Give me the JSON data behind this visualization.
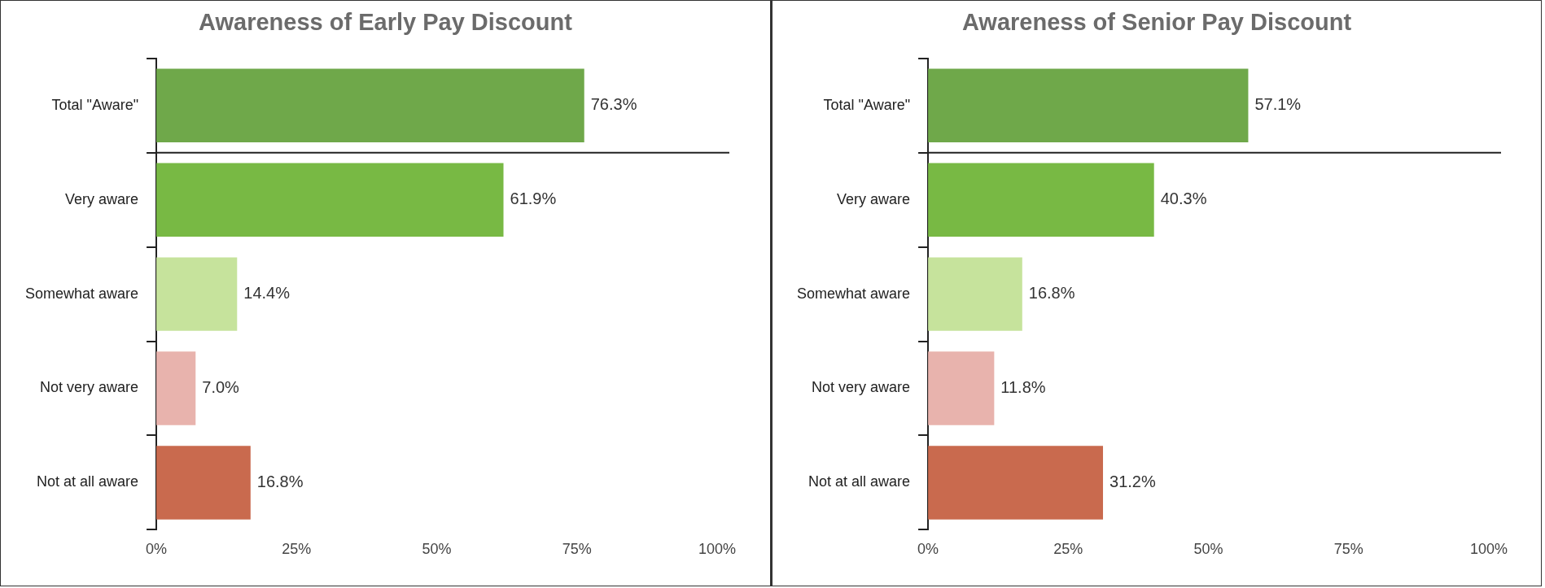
{
  "chart_data": [
    {
      "type": "bar",
      "orientation": "horizontal",
      "title": "Awareness of Early Pay Discount",
      "categories": [
        "Total \"Aware\"",
        "Very aware",
        "Somewhat aware",
        "Not very aware",
        "Not at all aware"
      ],
      "values": [
        76.3,
        61.9,
        14.4,
        7.0,
        16.8
      ],
      "colors": [
        "#6fa84a",
        "#78b944",
        "#c6e39c",
        "#e8b3ad",
        "#c96a4e"
      ],
      "value_labels": [
        "76.3%",
        "61.9%",
        "14.4%",
        "7.0%",
        "16.8%"
      ],
      "xlim": [
        0,
        100
      ],
      "xticks": [
        {
          "value": 0,
          "label": "0%"
        },
        {
          "value": 25,
          "label": "25%"
        },
        {
          "value": 50,
          "label": "50%"
        },
        {
          "value": 75,
          "label": "75%"
        },
        {
          "value": 100,
          "label": "100%"
        }
      ],
      "grid": false,
      "legend": false
    },
    {
      "type": "bar",
      "orientation": "horizontal",
      "title": "Awareness of Senior Pay Discount",
      "categories": [
        "Total \"Aware\"",
        "Very aware",
        "Somewhat aware",
        "Not very aware",
        "Not at all aware"
      ],
      "values": [
        57.1,
        40.3,
        16.8,
        11.8,
        31.2
      ],
      "colors": [
        "#6fa84a",
        "#78b944",
        "#c6e39c",
        "#e8b3ad",
        "#c96a4e"
      ],
      "value_labels": [
        "57.1%",
        "40.3%",
        "16.8%",
        "11.8%",
        "31.2%"
      ],
      "xlim": [
        0,
        100
      ],
      "xticks": [
        {
          "value": 0,
          "label": "0%"
        },
        {
          "value": 25,
          "label": "25%"
        },
        {
          "value": 50,
          "label": "50%"
        },
        {
          "value": 75,
          "label": "75%"
        },
        {
          "value": 100,
          "label": "100%"
        }
      ],
      "grid": false,
      "legend": false
    }
  ]
}
